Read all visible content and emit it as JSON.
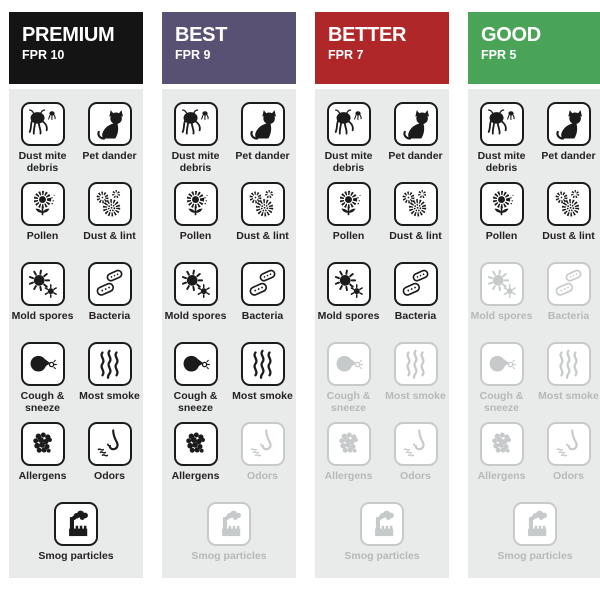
{
  "page": {
    "background": "#ffffff",
    "panel_color": "#e9eaea",
    "active_icon_color": "#1b1b1b",
    "inactive_icon_color": "#c7cacb"
  },
  "contaminants": [
    {
      "id": "dust-mite",
      "label": "Dust mite debris"
    },
    {
      "id": "cat",
      "label": "Pet dander"
    },
    {
      "id": "pollen",
      "label": "Pollen"
    },
    {
      "id": "dust-lint",
      "label": "Dust & lint"
    },
    {
      "id": "mold-spores",
      "label": "Mold spores"
    },
    {
      "id": "bacteria",
      "label": "Bacteria"
    },
    {
      "id": "cough-sneeze",
      "label": "Cough & sneeze"
    },
    {
      "id": "smoke",
      "label": "Most smoke"
    },
    {
      "id": "allergens",
      "label": "Allergens"
    },
    {
      "id": "nose",
      "label": "Odors"
    },
    {
      "id": "factory",
      "label": "Smog particles"
    }
  ],
  "columns": [
    {
      "title": "PREMIUM",
      "fpr": "FPR 10",
      "header_color": "#141414",
      "captures": [
        true,
        true,
        true,
        true,
        true,
        true,
        true,
        true,
        true,
        true,
        true
      ]
    },
    {
      "title": "BEST",
      "fpr": "FPR 9",
      "header_color": "#585174",
      "captures": [
        true,
        true,
        true,
        true,
        true,
        true,
        true,
        true,
        true,
        false,
        false
      ]
    },
    {
      "title": "BETTER",
      "fpr": "FPR 7",
      "header_color": "#b02729",
      "captures": [
        true,
        true,
        true,
        true,
        true,
        true,
        false,
        false,
        false,
        false,
        false
      ]
    },
    {
      "title": "GOOD",
      "fpr": "FPR 5",
      "header_color": "#4aa457",
      "captures": [
        true,
        true,
        true,
        true,
        false,
        false,
        false,
        false,
        false,
        false,
        false
      ]
    }
  ]
}
